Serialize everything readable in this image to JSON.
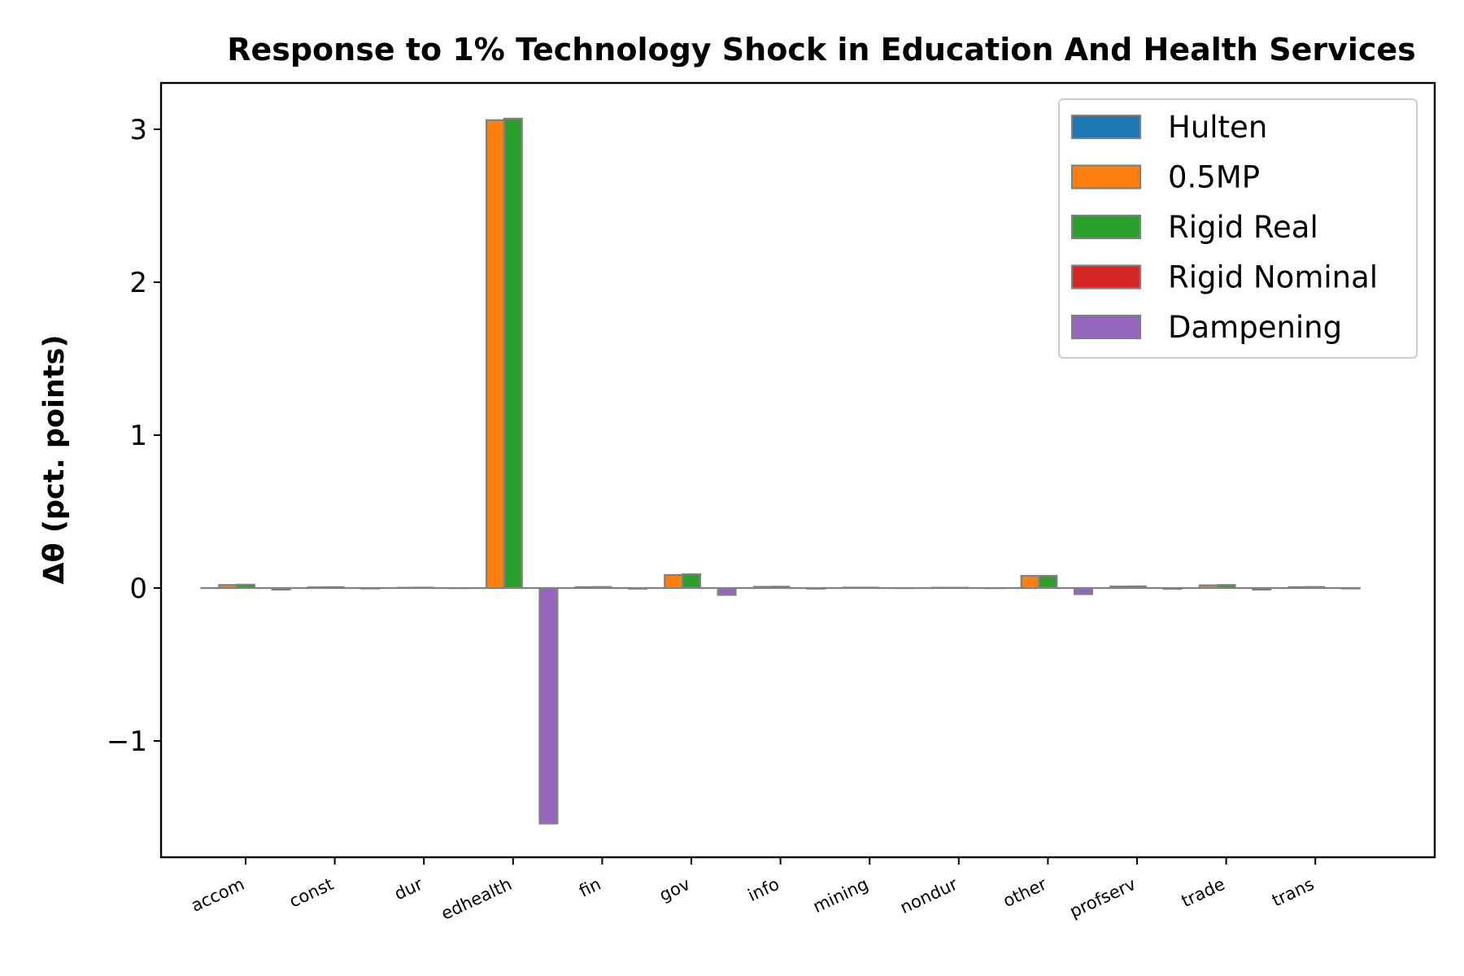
{
  "chart_data": {
    "type": "bar",
    "title": "Response to 1% Technology Shock in Education And Health Services",
    "xlabel": "",
    "ylabel": "Δθ  (pct. points)",
    "ylim": [
      -1.78,
      3.3
    ],
    "yticks": [
      3,
      2,
      1,
      0,
      -1
    ],
    "ytick_labels": [
      "3",
      "2",
      "1",
      "0",
      "−1"
    ],
    "grid": false,
    "legend_position": "top-right",
    "categories": [
      "accom",
      "const",
      "dur",
      "edhealth",
      "fin",
      "gov",
      "info",
      "mining",
      "nondur",
      "other",
      "profserv",
      "trade",
      "trans"
    ],
    "series": [
      {
        "name": "Hulten",
        "color": "#1f77b4",
        "values": [
          0.0,
          0.0,
          0.0,
          0.0,
          0.0,
          0.0,
          0.0,
          0.0,
          0.0,
          0.0,
          0.0,
          0.0,
          0.0
        ]
      },
      {
        "name": "0.5MP",
        "color": "#ff7f0e",
        "values": [
          0.02,
          0.005,
          0.002,
          3.06,
          0.006,
          0.085,
          0.008,
          0.003,
          0.002,
          0.08,
          0.01,
          0.018,
          0.006
        ]
      },
      {
        "name": "Rigid Real",
        "color": "#2ca02c",
        "values": [
          0.022,
          0.006,
          0.003,
          3.07,
          0.007,
          0.09,
          0.009,
          0.003,
          0.002,
          0.08,
          0.011,
          0.02,
          0.007
        ]
      },
      {
        "name": "Rigid Nominal",
        "color": "#d62728",
        "values": [
          0.0,
          0.0,
          0.0,
          0.0,
          0.0,
          0.0,
          0.0,
          0.0,
          0.0,
          0.0,
          0.0,
          0.0,
          0.0
        ]
      },
      {
        "name": "Dampening",
        "color": "#9467bd",
        "values": [
          -0.01,
          -0.003,
          -0.001,
          -1.54,
          -0.004,
          -0.045,
          -0.004,
          -0.001,
          -0.001,
          -0.04,
          -0.005,
          -0.01,
          -0.003
        ]
      }
    ]
  }
}
